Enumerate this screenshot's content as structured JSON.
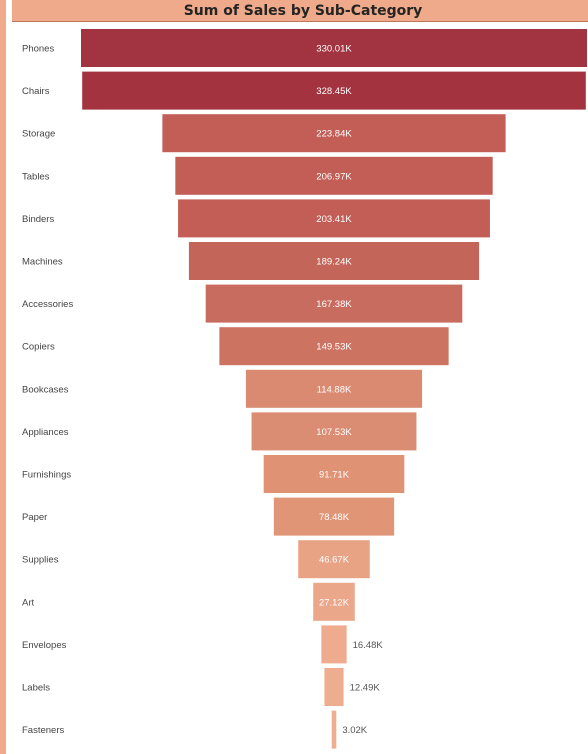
{
  "chart_data": {
    "type": "funnel",
    "title": "Sum of Sales by Sub-Category",
    "categories": [
      "Phones",
      "Chairs",
      "Storage",
      "Tables",
      "Binders",
      "Machines",
      "Accessories",
      "Copiers",
      "Bookcases",
      "Appliances",
      "Furnishings",
      "Paper",
      "Supplies",
      "Art",
      "Envelopes",
      "Labels",
      "Fasteners"
    ],
    "values": [
      330.01,
      328.45,
      223.84,
      206.97,
      203.41,
      189.24,
      167.38,
      149.53,
      114.88,
      107.53,
      91.71,
      78.48,
      46.67,
      27.12,
      16.48,
      12.49,
      3.02
    ],
    "data_labels": [
      "330.01K",
      "328.45K",
      "223.84K",
      "206.97K",
      "203.41K",
      "189.24K",
      "167.38K",
      "149.53K",
      "114.88K",
      "107.53K",
      "91.71K",
      "78.48K",
      "46.67K",
      "27.12K",
      "16.48K",
      "12.49K",
      "3.02K"
    ],
    "unit": "K",
    "bar_colors": [
      "#a23340",
      "#a43340",
      "#c25e55",
      "#c25e55",
      "#c25e55",
      "#c4655a",
      "#c96c60",
      "#cc7362",
      "#d98a71",
      "#da8d72",
      "#df9274",
      "#e09577",
      "#e8a385",
      "#eba78a",
      "#eeab8d",
      "#efad8f",
      "#efae90"
    ],
    "legend": "none",
    "grid": false
  }
}
